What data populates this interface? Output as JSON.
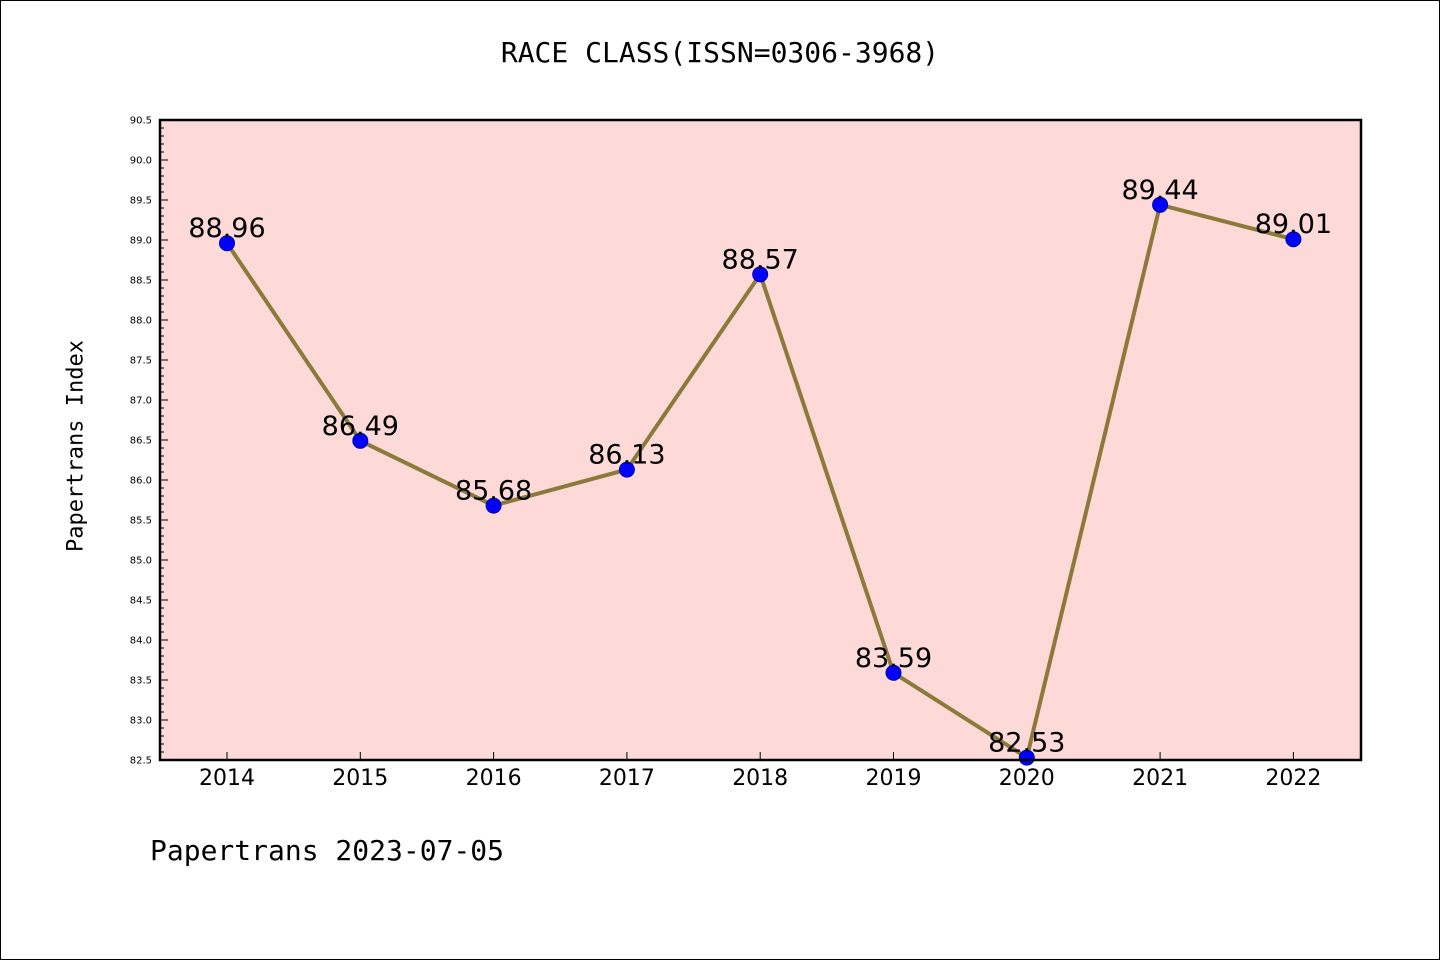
{
  "chart_data": {
    "type": "line",
    "title": "RACE CLASS(ISSN=0306-3968)",
    "xlabel": "",
    "ylabel": "Papertrans Index",
    "footer": "Papertrans 2023-07-05",
    "categories": [
      "2014",
      "2015",
      "2016",
      "2017",
      "2018",
      "2019",
      "2020",
      "2021",
      "2022"
    ],
    "values": [
      88.96,
      86.49,
      85.68,
      86.13,
      88.57,
      83.59,
      82.53,
      89.44,
      89.01
    ],
    "data_labels": [
      "88.96",
      "86.49",
      "85.68",
      "86.13",
      "88.57",
      "83.59",
      "82.53",
      "89.44",
      "89.01"
    ],
    "ylim": [
      82.5,
      90.5
    ],
    "yticks": [
      "82.5",
      "83.0",
      "83.5",
      "84.0",
      "84.5",
      "85.0",
      "85.5",
      "86.0",
      "86.5",
      "87.0",
      "87.5",
      "88.0",
      "88.5",
      "89.0",
      "89.5",
      "90.0",
      "90.5"
    ],
    "grid": false,
    "colors": {
      "plot_background": "#fddad8",
      "line": "#8b7a3a",
      "marker": "#0000ff"
    }
  }
}
